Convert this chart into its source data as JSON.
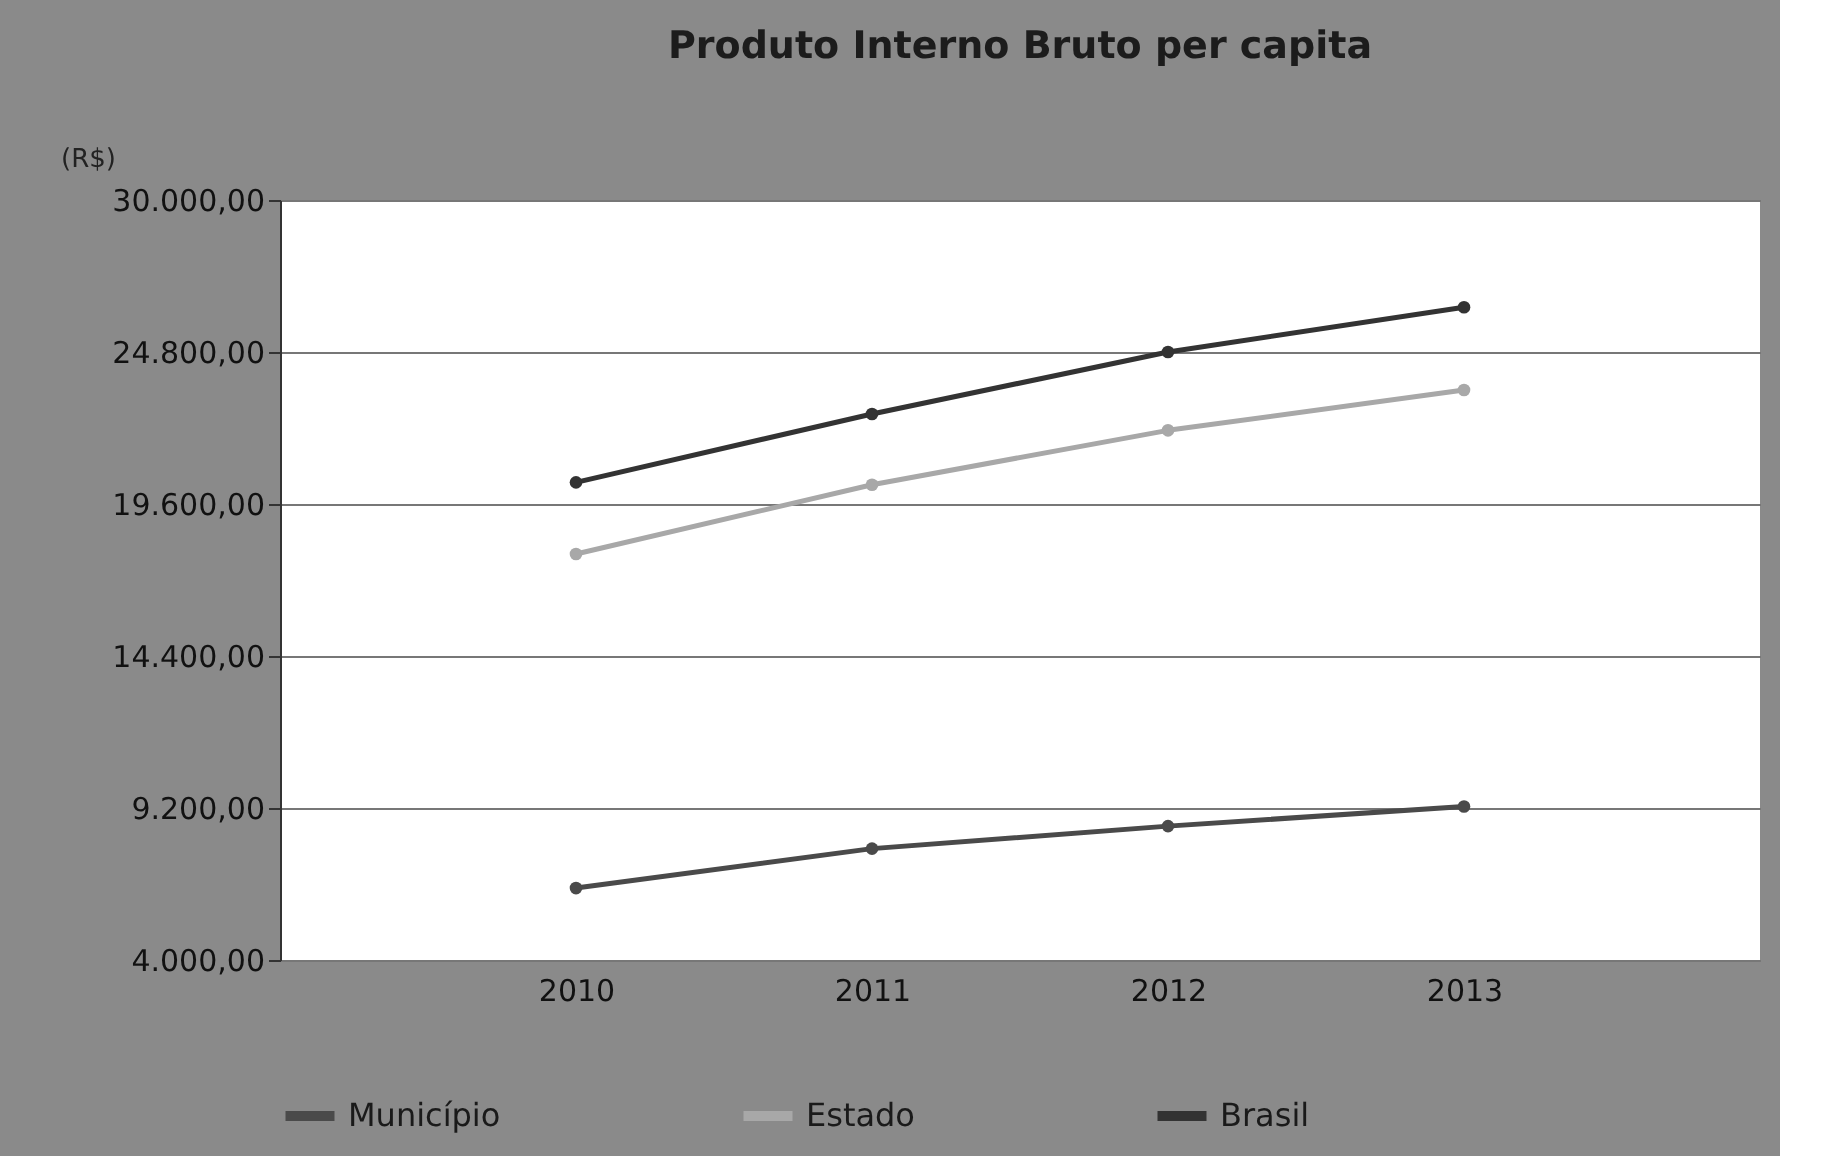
{
  "chart_data": {
    "type": "line",
    "title": "Produto Interno Bruto per capita",
    "ylabel": "(R$)",
    "categories": [
      "2010",
      "2011",
      "2012",
      "2013"
    ],
    "series": [
      {
        "name": "Município",
        "color": "#4a4a4a",
        "values": [
          6460,
          7810,
          8580,
          9250
        ]
      },
      {
        "name": "Estado",
        "color": "#a8a8a8",
        "values": [
          17890,
          20260,
          22120,
          23500
        ]
      },
      {
        "name": "Brasil",
        "color": "#333333",
        "values": [
          20340,
          22680,
          24800,
          26330
        ]
      }
    ],
    "ylim": [
      4000,
      30000
    ],
    "yticks": [
      {
        "value": 4000,
        "label": "4.000,00"
      },
      {
        "value": 9200,
        "label": "9.200,00"
      },
      {
        "value": 14400,
        "label": "14.400,00"
      },
      {
        "value": 19600,
        "label": "19.600,00"
      },
      {
        "value": 24800,
        "label": "24.800,00"
      },
      {
        "value": 30000,
        "label": "30.000,00"
      }
    ],
    "grid": "y",
    "legend": "bottom",
    "marker": "circle",
    "line_style": "solid"
  }
}
